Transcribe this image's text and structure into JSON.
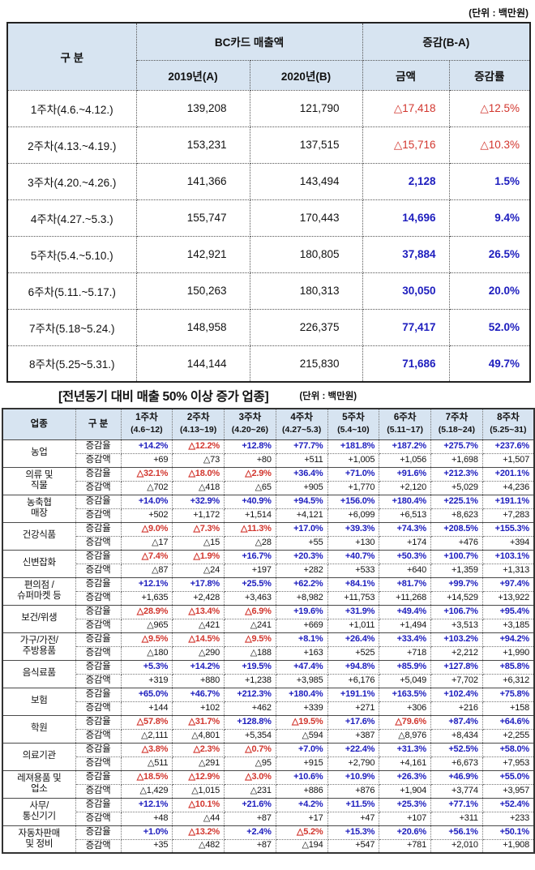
{
  "page": {
    "unit_note_top": "(단위 : 백만원)"
  },
  "colors": {
    "positive_blue": "#1d1dbe",
    "negative_red": "#d2362e",
    "header_background": "#d7e4f1"
  },
  "table1": {
    "headers": {
      "gubun": "구  분",
      "bc_sales": "BC카드 매출액",
      "change": "증감(B-A)",
      "y2019": "2019년(A)",
      "y2020": "2020년(B)",
      "amount": "금액",
      "rate": "증감률"
    },
    "rows": [
      {
        "label": "1주차(4.6.~4.12.)",
        "y2019": "139,208",
        "y2020": "121,790",
        "amount": "△17,418",
        "rate": "△12.5%"
      },
      {
        "label": "2주차(4.13.~4.19.)",
        "y2019": "153,231",
        "y2020": "137,515",
        "amount": "△15,716",
        "rate": "△10.3%"
      },
      {
        "label": "3주차(4.20.~4.26.)",
        "y2019": "141,366",
        "y2020": "143,494",
        "amount": "2,128",
        "rate": "1.5%"
      },
      {
        "label": "4주차(4.27.~5.3.)",
        "y2019": "155,747",
        "y2020": "170,443",
        "amount": "14,696",
        "rate": "9.4%"
      },
      {
        "label": "5주차(5.4.~5.10.)",
        "y2019": "142,921",
        "y2020": "180,805",
        "amount": "37,884",
        "rate": "26.5%"
      },
      {
        "label": "6주차(5.11.~5.17.)",
        "y2019": "150,263",
        "y2020": "180,313",
        "amount": "30,050",
        "rate": "20.0%"
      },
      {
        "label": "7주차(5.18~5.24.)",
        "y2019": "148,958",
        "y2020": "226,375",
        "amount": "77,417",
        "rate": "52.0%"
      },
      {
        "label": "8주차(5.25~5.31.)",
        "y2019": "144,144",
        "y2020": "215,830",
        "amount": "71,686",
        "rate": "49.7%"
      }
    ]
  },
  "table2": {
    "title": "[전년동기 대비 매출 50% 이상 증가 업종]",
    "unit_note": "(단위 : 백만원)",
    "headers": {
      "category": "업종",
      "gubun": "구 분",
      "weeks": [
        {
          "label": "1주차",
          "range": "(4.6~12)"
        },
        {
          "label": "2주차",
          "range": "(4.13~19)"
        },
        {
          "label": "3주차",
          "range": "(4.20~26)"
        },
        {
          "label": "4주차",
          "range": "(4.27~5.3)"
        },
        {
          "label": "5주차",
          "range": "(5.4~10)"
        },
        {
          "label": "6주차",
          "range": "(5.11~17)"
        },
        {
          "label": "7주차",
          "range": "(5.18~24)"
        },
        {
          "label": "8주차",
          "range": "(5.25~31)"
        }
      ]
    },
    "row_labels": {
      "rate": "증감율",
      "amount": "증감액"
    },
    "groups": [
      {
        "category": "농업",
        "rates": [
          "+14.2%",
          "△12.2%",
          "+12.8%",
          "+77.7%",
          "+181.8%",
          "+187.2%",
          "+275.7%",
          "+237.6%"
        ],
        "amounts": [
          "+69",
          "△73",
          "+80",
          "+511",
          "+1,005",
          "+1,056",
          "+1,698",
          "+1,507"
        ]
      },
      {
        "category": "의류 및\n직물",
        "rates": [
          "△32.1%",
          "△18.0%",
          "△2.9%",
          "+36.4%",
          "+71.0%",
          "+91.6%",
          "+212.3%",
          "+201.1%"
        ],
        "amounts": [
          "△702",
          "△418",
          "△65",
          "+905",
          "+1,770",
          "+2,120",
          "+5,029",
          "+4,236"
        ]
      },
      {
        "category": "농축협\n매장",
        "rates": [
          "+14.0%",
          "+32.9%",
          "+40.9%",
          "+94.5%",
          "+156.0%",
          "+180.4%",
          "+225.1%",
          "+191.1%"
        ],
        "amounts": [
          "+502",
          "+1,172",
          "+1,514",
          "+4,121",
          "+6,099",
          "+6,513",
          "+8,623",
          "+7,283"
        ]
      },
      {
        "category": "건강식품",
        "rates": [
          "△9.0%",
          "△7.3%",
          "△11.3%",
          "+17.0%",
          "+39.3%",
          "+74.3%",
          "+208.5%",
          "+155.3%"
        ],
        "amounts": [
          "△17",
          "△15",
          "△28",
          "+55",
          "+130",
          "+174",
          "+476",
          "+394"
        ]
      },
      {
        "category": "신변잡화",
        "rates": [
          "△7.4%",
          "△1.9%",
          "+16.7%",
          "+20.3%",
          "+40.7%",
          "+50.3%",
          "+100.7%",
          "+103.1%"
        ],
        "amounts": [
          "△87",
          "△24",
          "+197",
          "+282",
          "+533",
          "+640",
          "+1,359",
          "+1,313"
        ]
      },
      {
        "category": "편의점 /\n슈퍼마켓  등",
        "rates": [
          "+12.1%",
          "+17.8%",
          "+25.5%",
          "+62.2%",
          "+84.1%",
          "+81.7%",
          "+99.7%",
          "+97.4%"
        ],
        "amounts": [
          "+1,635",
          "+2,428",
          "+3,463",
          "+8,982",
          "+11,753",
          "+11,268",
          "+14,529",
          "+13,922"
        ]
      },
      {
        "category": "보건/위생",
        "rates": [
          "△28.9%",
          "△13.4%",
          "△6.9%",
          "+19.6%",
          "+31.9%",
          "+49.4%",
          "+106.7%",
          "+95.4%"
        ],
        "amounts": [
          "△965",
          "△421",
          "△241",
          "+669",
          "+1,011",
          "+1,494",
          "+3,513",
          "+3,185"
        ]
      },
      {
        "category": "가구/가전/\n주방용품",
        "rates": [
          "△9.5%",
          "△14.5%",
          "△9.5%",
          "+8.1%",
          "+26.4%",
          "+33.4%",
          "+103.2%",
          "+94.2%"
        ],
        "amounts": [
          "△180",
          "△290",
          "△188",
          "+163",
          "+525",
          "+718",
          "+2,212",
          "+1,990"
        ]
      },
      {
        "category": "음식료품",
        "rates": [
          "+5.3%",
          "+14.2%",
          "+19.5%",
          "+47.4%",
          "+94.8%",
          "+85.9%",
          "+127.8%",
          "+85.8%"
        ],
        "amounts": [
          "+319",
          "+880",
          "+1,238",
          "+3,985",
          "+6,176",
          "+5,049",
          "+7,702",
          "+6,312"
        ]
      },
      {
        "category": "보험",
        "rates": [
          "+65.0%",
          "+46.7%",
          "+212.3%",
          "+180.4%",
          "+191.1%",
          "+163.5%",
          "+102.4%",
          "+75.8%"
        ],
        "amounts": [
          "+144",
          "+102",
          "+462",
          "+339",
          "+271",
          "+306",
          "+216",
          "+158"
        ]
      },
      {
        "category": "학원",
        "rates": [
          "△57.8%",
          "△31.7%",
          "+128.8%",
          "△19.5%",
          "+17.6%",
          "△79.6%",
          "+87.4%",
          "+64.6%"
        ],
        "amounts": [
          "△2,111",
          "△4,801",
          "+5,354",
          "△594",
          "+387",
          "△8,976",
          "+8,434",
          "+2,255"
        ]
      },
      {
        "category": "의료기관",
        "rates": [
          "△3.8%",
          "△2.3%",
          "△0.7%",
          "+7.0%",
          "+22.4%",
          "+31.3%",
          "+52.5%",
          "+58.0%"
        ],
        "amounts": [
          "△511",
          "△291",
          "△95",
          "+915",
          "+2,790",
          "+4,161",
          "+6,673",
          "+7,953"
        ]
      },
      {
        "category": "레져용품 및\n업소",
        "rates": [
          "△18.5%",
          "△12.9%",
          "△3.0%",
          "+10.6%",
          "+10.9%",
          "+26.3%",
          "+46.9%",
          "+55.0%"
        ],
        "amounts": [
          "△1,429",
          "△1,015",
          "△231",
          "+886",
          "+876",
          "+1,904",
          "+3,774",
          "+3,957"
        ]
      },
      {
        "category": "사무/\n통신기기",
        "rates": [
          "+12.1%",
          "△10.1%",
          "+21.6%",
          "+4.2%",
          "+11.5%",
          "+25.3%",
          "+77.1%",
          "+52.4%"
        ],
        "amounts": [
          "+48",
          "△44",
          "+87",
          "+17",
          "+47",
          "+107",
          "+311",
          "+233"
        ]
      },
      {
        "category": "자동차판매\n및  정비",
        "rates": [
          "+1.0%",
          "△13.2%",
          "+2.4%",
          "△5.2%",
          "+15.3%",
          "+20.6%",
          "+56.1%",
          "+50.1%"
        ],
        "amounts": [
          "+35",
          "△482",
          "+87",
          "△194",
          "+547",
          "+781",
          "+2,010",
          "+1,908"
        ]
      }
    ]
  }
}
